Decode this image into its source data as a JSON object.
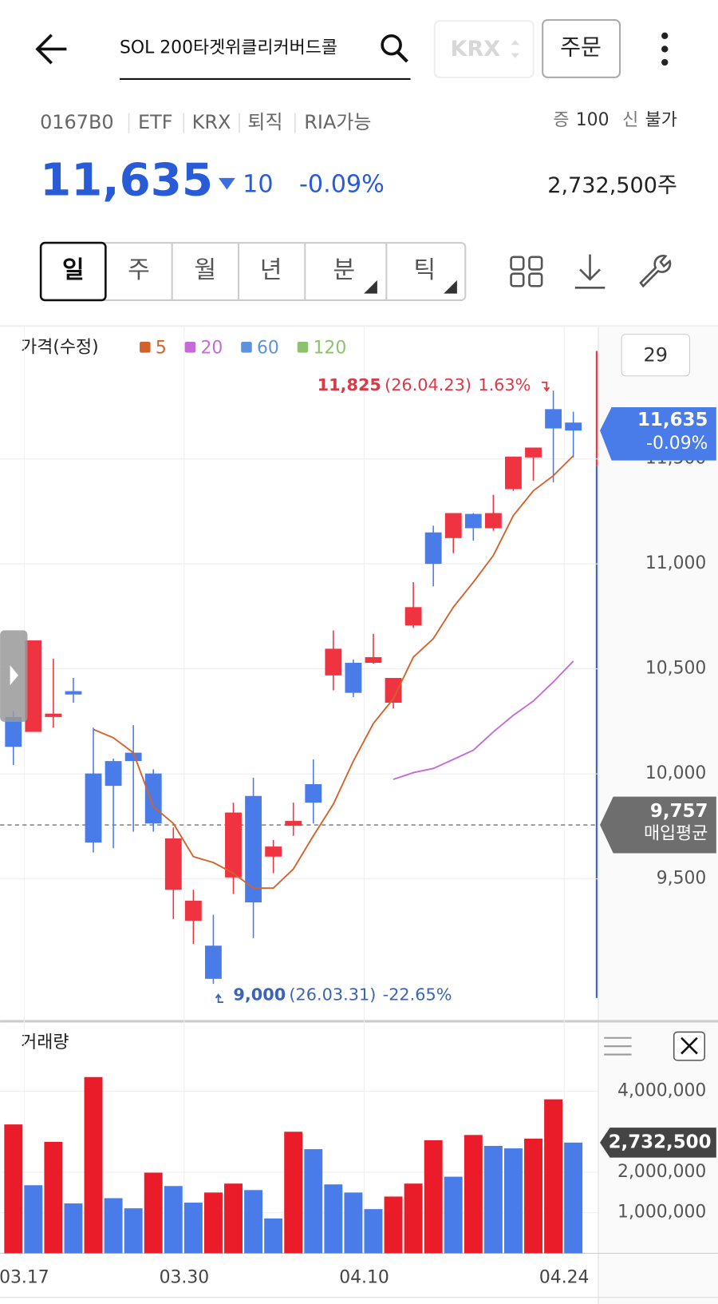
{
  "header": {
    "search_text": "SOL 200타겟위클리커버드콜",
    "exchange": "KRX",
    "order_button": "주문"
  },
  "info": {
    "code": "0167B0",
    "tags": [
      "ETF",
      "KRX",
      "퇴직",
      "RIA가능"
    ],
    "margin_label": "증",
    "margin_value": "100",
    "credit_label": "신",
    "credit_value": "불가",
    "price": "11,635",
    "change": "10",
    "change_pct": "-0.09%",
    "volume": "2,732,500주"
  },
  "periods": [
    "일",
    "주",
    "월",
    "년",
    "분",
    "틱"
  ],
  "chart_data": [
    {
      "type": "candlestick",
      "title": "가격(수정)",
      "period_count": "29",
      "categories": [
        null,
        "03.17",
        null,
        null,
        null,
        null,
        null,
        null,
        null,
        "03.30",
        null,
        null,
        null,
        null,
        null,
        null,
        null,
        null,
        "04.10",
        null,
        null,
        null,
        null,
        null,
        null,
        null,
        null,
        null,
        "04.24"
      ],
      "open": [
        10271,
        10200,
        10271,
        10394,
        10002,
        10061,
        10101,
        10002,
        9448,
        9301,
        9182,
        9507,
        9895,
        9606,
        9753,
        9951,
        10469,
        10529,
        10529,
        10339,
        10707,
        11150,
        11123,
        11238,
        11170,
        11356,
        11507,
        11737,
        11673
      ],
      "high": [
        10299,
        10636,
        10549,
        10457,
        10220,
        10073,
        10232,
        10022,
        9745,
        9448,
        9329,
        9863,
        9982,
        9685,
        9863,
        10069,
        10683,
        10545,
        10667,
        10457,
        10913,
        11182,
        11242,
        11242,
        11329,
        11511,
        11554,
        11825,
        11725
      ],
      "low": [
        10042,
        10200,
        10220,
        10339,
        9626,
        9646,
        9725,
        9725,
        9309,
        9190,
        9000,
        9428,
        9218,
        9527,
        9705,
        9764,
        10398,
        10366,
        10525,
        10311,
        10695,
        10893,
        11051,
        11111,
        11158,
        11348,
        11396,
        11388,
        11507
      ],
      "close": [
        10129,
        10636,
        10287,
        10378,
        9673,
        9943,
        10061,
        9764,
        9693,
        9396,
        9024,
        9816,
        9388,
        9654,
        9776,
        9863,
        10596,
        10386,
        10556,
        10457,
        10794,
        11000,
        11242,
        11170,
        11242,
        11511,
        11554,
        11645,
        11635
      ],
      "up_color": "#ef3340",
      "down_color": "#4a7ce9",
      "series": [
        {
          "name": "5",
          "color": "#d2622a",
          "values": [
            null,
            null,
            null,
            null,
            10212,
            10172,
            10101,
            9844,
            9764,
            9606,
            9578,
            9527,
            9456,
            9456,
            9547,
            9705,
            9856,
            10061,
            10240,
            10358,
            10556,
            10644,
            10794,
            10913,
            11040,
            11230,
            11348,
            11420,
            11515
          ]
        },
        {
          "name": "20",
          "color": "#c36bd6",
          "values": [
            null,
            null,
            null,
            null,
            null,
            null,
            null,
            null,
            null,
            null,
            null,
            null,
            null,
            null,
            null,
            null,
            null,
            null,
            null,
            9974,
            10006,
            10026,
            10069,
            10113,
            10200,
            10279,
            10347,
            10438,
            10537
          ]
        },
        {
          "name": "60",
          "color": "#5b93dd"
        },
        {
          "name": "120",
          "color": "#8dc26c"
        }
      ],
      "ylim": [
        8834,
        12121
      ],
      "yticks": [
        {
          "value": 9500,
          "label": "9,500"
        },
        {
          "value": 10000,
          "label": "10,000"
        },
        {
          "value": 10500,
          "label": "10,500"
        },
        {
          "value": 11000,
          "label": "11,000"
        },
        {
          "value": 11500,
          "label": "11,500"
        }
      ],
      "max_annotation": {
        "value": 11825,
        "label": "11,825",
        "date": "(26.04.23)",
        "change": "1.63%"
      },
      "min_annotation": {
        "value": 9000,
        "label": "9,000",
        "date": "(26.03.31)",
        "change": "-22.65%"
      },
      "avg_price": {
        "value": 9757,
        "label": "9,757",
        "text": "매입평균"
      }
    },
    {
      "type": "bar",
      "title": "거래량",
      "values": [
        3180000,
        1680000,
        2750000,
        1230000,
        4350000,
        1360000,
        1110000,
        1990000,
        1660000,
        1250000,
        1500000,
        1720000,
        1560000,
        860000,
        3000000,
        2570000,
        1700000,
        1500000,
        1090000,
        1400000,
        1720000,
        2790000,
        1890000,
        2920000,
        2650000,
        2590000,
        2830000,
        3800000,
        2732500
      ],
      "colors": [
        "#ea1c2a",
        "#4a7ce9",
        "#ea1c2a",
        "#4a7ce9",
        "#ea1c2a",
        "#4a7ce9",
        "#4a7ce9",
        "#ea1c2a",
        "#4a7ce9",
        "#4a7ce9",
        "#ea1c2a",
        "#ea1c2a",
        "#4a7ce9",
        "#4a7ce9",
        "#ea1c2a",
        "#4a7ce9",
        "#4a7ce9",
        "#4a7ce9",
        "#4a7ce9",
        "#ea1c2a",
        "#ea1c2a",
        "#ea1c2a",
        "#4a7ce9",
        "#ea1c2a",
        "#4a7ce9",
        "#4a7ce9",
        "#ea1c2a",
        "#ea1c2a",
        "#4a7ce9"
      ],
      "ylim": [
        0,
        4660000
      ],
      "yticks": [
        {
          "value": 1000000,
          "label": "1,000,000"
        },
        {
          "value": 2000000,
          "label": "2,000,000"
        },
        {
          "value": 4000000,
          "label": "4,000,000"
        }
      ],
      "last_value_label": "2,732,500"
    }
  ]
}
